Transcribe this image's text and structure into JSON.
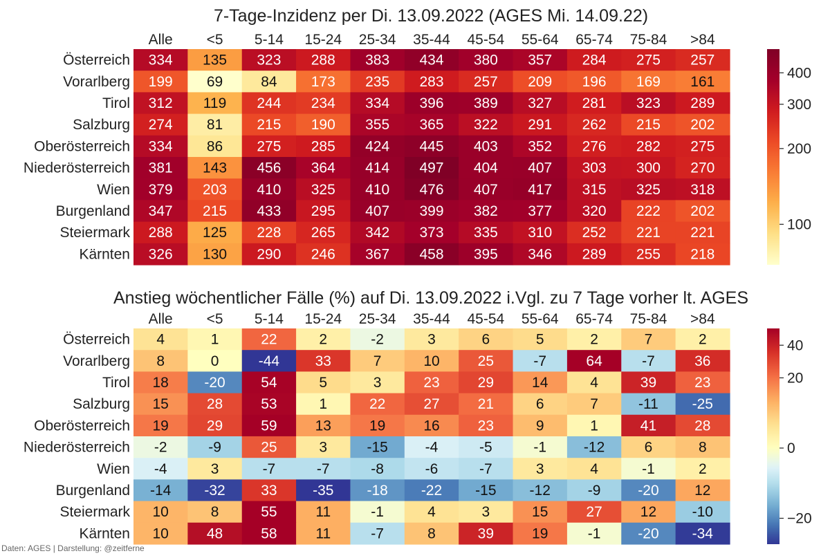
{
  "footer": "Daten: AGES | Darstellung: @zeitferne",
  "colors": {
    "incidence_scale": [
      "#ffffcc",
      "#fee087",
      "#fdb04a",
      "#f97d35",
      "#ec4a26",
      "#cf1b1f",
      "#a3002a",
      "#800026"
    ],
    "change_scale": [
      "#313695",
      "#4575b4",
      "#74add1",
      "#abd9e9",
      "#e0f3f8",
      "#ffffbf",
      "#fee090",
      "#fdae61",
      "#f46d43",
      "#d73027",
      "#a50026"
    ]
  },
  "chart_data": [
    {
      "type": "heatmap",
      "title": "7-Tage-Inzidenz per Di. 13.09.2022  (AGES Mi. 14.09.22)",
      "x": [
        "Alle",
        "<5",
        "5-14",
        "15-24",
        "25-34",
        "35-44",
        "45-54",
        "55-64",
        "65-74",
        "75-84",
        ">84"
      ],
      "y": [
        "Österreich",
        "Vorarlberg",
        "Tirol",
        "Salzburg",
        "Oberösterreich",
        "Niederösterreich",
        "Wien",
        "Burgenland",
        "Steiermark",
        "Kärnten"
      ],
      "values": [
        [
          334,
          135,
          323,
          288,
          383,
          434,
          380,
          357,
          284,
          275,
          257
        ],
        [
          199,
          69,
          84,
          173,
          235,
          283,
          257,
          209,
          196,
          169,
          161
        ],
        [
          312,
          119,
          244,
          234,
          334,
          396,
          389,
          327,
          281,
          323,
          289
        ],
        [
          274,
          81,
          215,
          190,
          355,
          365,
          322,
          291,
          262,
          215,
          202
        ],
        [
          334,
          86,
          275,
          285,
          424,
          445,
          403,
          352,
          276,
          282,
          275
        ],
        [
          381,
          143,
          456,
          364,
          414,
          497,
          404,
          407,
          303,
          300,
          270
        ],
        [
          379,
          203,
          410,
          325,
          410,
          476,
          407,
          417,
          315,
          325,
          318
        ],
        [
          347,
          215,
          433,
          295,
          407,
          399,
          382,
          377,
          320,
          222,
          202
        ],
        [
          288,
          125,
          228,
          265,
          342,
          373,
          335,
          310,
          252,
          221,
          221
        ],
        [
          326,
          130,
          290,
          246,
          367,
          458,
          395,
          346,
          289,
          255,
          218
        ]
      ],
      "colorbar": {
        "scale": "log",
        "range": [
          69,
          497
        ],
        "ticks": [
          100,
          200,
          300,
          400
        ]
      }
    },
    {
      "type": "heatmap",
      "title": "Anstieg wöchentlicher Fälle (%) auf Di. 13.09.2022 i.Vgl. zu 7 Tage vorher lt. AGES",
      "x": [
        "Alle",
        "<5",
        "5-14",
        "15-24",
        "25-34",
        "35-44",
        "45-54",
        "55-64",
        "65-74",
        "75-84",
        ">84"
      ],
      "y": [
        "Österreich",
        "Vorarlberg",
        "Tirol",
        "Salzburg",
        "Oberösterreich",
        "Niederösterreich",
        "Wien",
        "Burgenland",
        "Steiermark",
        "Kärnten"
      ],
      "values": [
        [
          4,
          1,
          22,
          2,
          -2,
          3,
          6,
          5,
          2,
          7,
          2
        ],
        [
          8,
          0,
          -44,
          33,
          7,
          10,
          25,
          -7,
          64,
          -7,
          36
        ],
        [
          18,
          -20,
          54,
          5,
          3,
          23,
          29,
          14,
          4,
          39,
          23
        ],
        [
          15,
          28,
          53,
          1,
          22,
          27,
          21,
          6,
          7,
          -11,
          -25
        ],
        [
          19,
          29,
          59,
          13,
          19,
          16,
          23,
          9,
          1,
          41,
          28
        ],
        [
          -2,
          -9,
          25,
          3,
          -15,
          -4,
          -5,
          -1,
          -12,
          6,
          8
        ],
        [
          -4,
          3,
          -7,
          -7,
          -8,
          -6,
          -7,
          3,
          4,
          -1,
          2
        ],
        [
          -14,
          -32,
          33,
          -35,
          -18,
          -22,
          -15,
          -12,
          -9,
          -20,
          12
        ],
        [
          10,
          8,
          55,
          11,
          -1,
          4,
          3,
          15,
          27,
          12,
          -10
        ],
        [
          10,
          48,
          58,
          11,
          -7,
          8,
          39,
          19,
          -1,
          -20,
          -34
        ]
      ],
      "colorbar": {
        "scale": "symlog",
        "center": 0,
        "range": [
          -35,
          55
        ],
        "ticks": [
          -20,
          0,
          20,
          40
        ],
        "tick_labels": [
          "−20",
          "0",
          "20",
          "40"
        ]
      }
    }
  ]
}
